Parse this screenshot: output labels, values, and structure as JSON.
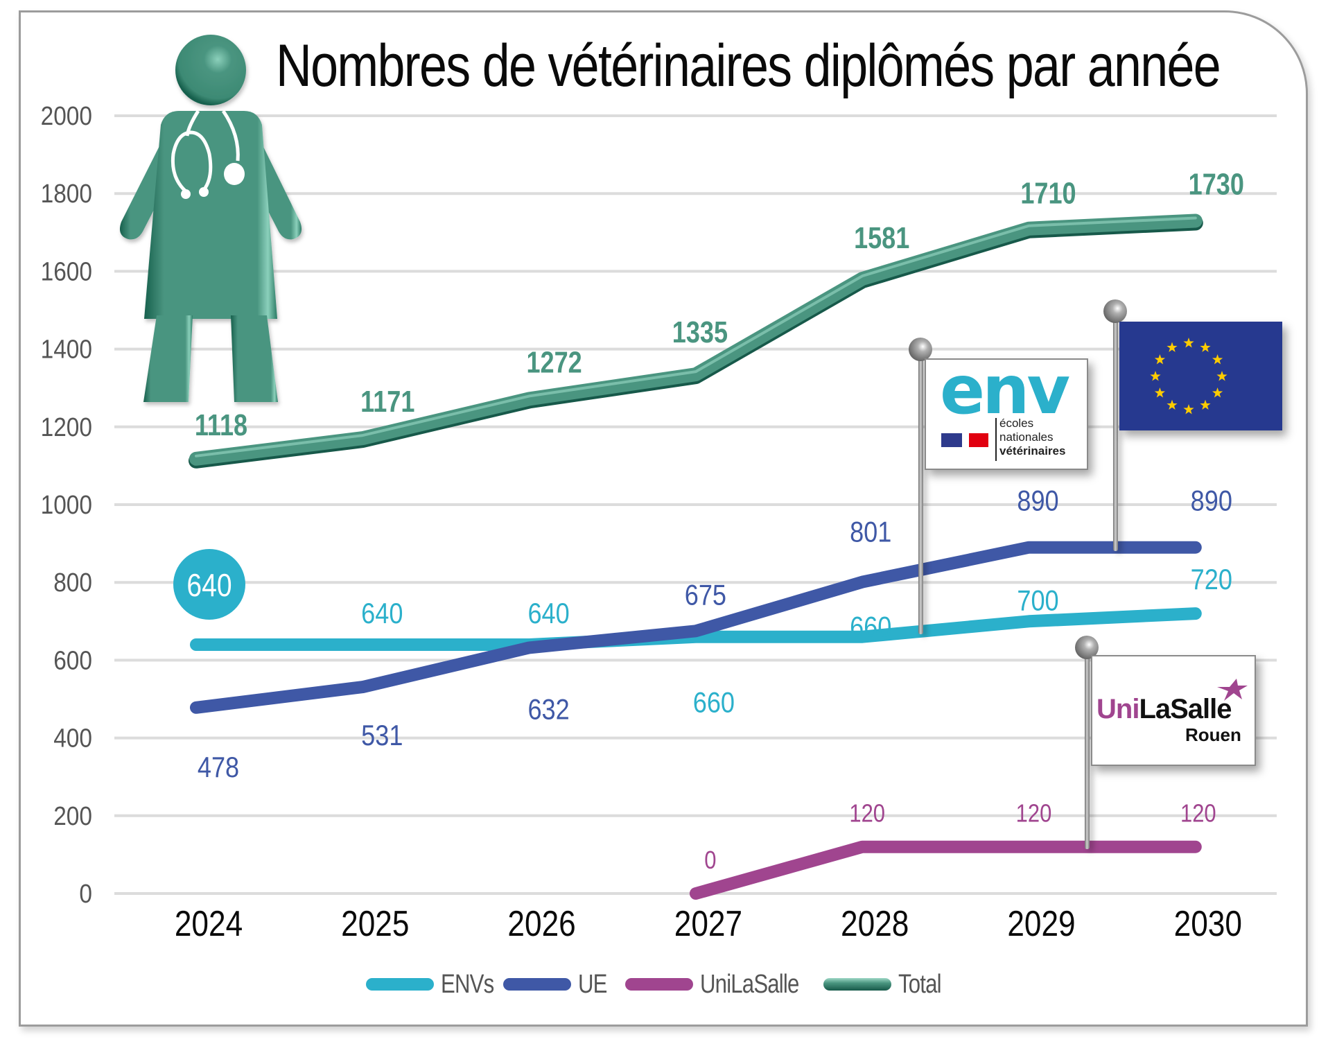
{
  "title": "Nombres de vétérinaires diplômés par année",
  "icons": {
    "person": "veterinarian-woman-with-stethoscope-icon",
    "pin": "map-pin-ball-icon"
  },
  "flags": {
    "env": {
      "logo_text": "env",
      "line1": "écoles",
      "line2": "nationales",
      "line3": "vétérinaires",
      "series": "ENVs"
    },
    "eu": {
      "name": "european-union-flag",
      "series": "UE"
    },
    "unilasalle": {
      "part1": "Uni",
      "part2": "LaSalle",
      "city": "Rouen",
      "series": "UniLaSalle"
    }
  },
  "colors": {
    "envs": "#2bb0cb",
    "ue": "#3f58a6",
    "unilasalle": "#a0458f",
    "total": "#4a9580",
    "total_dark": "#1f6a56",
    "grid": "#dcdcdc",
    "axis_text": "#555555",
    "eu_blue": "#26398f",
    "eu_star": "#ffcc00"
  },
  "chart_data": {
    "type": "line",
    "title": "Nombres de vétérinaires diplômés par année",
    "xlabel": "",
    "ylabel": "",
    "categories": [
      "2024",
      "2025",
      "2026",
      "2027",
      "2028",
      "2029",
      "2030"
    ],
    "ylim": [
      0,
      2000
    ],
    "yticks": [
      0,
      200,
      400,
      600,
      800,
      1000,
      1200,
      1400,
      1600,
      1800,
      2000
    ],
    "grid": true,
    "legend_position": "bottom",
    "series": [
      {
        "key": "envs",
        "name": "ENVs",
        "values": [
          640,
          640,
          640,
          660,
          660,
          700,
          720
        ]
      },
      {
        "key": "ue",
        "name": "UE",
        "values": [
          478,
          531,
          632,
          675,
          801,
          890,
          890
        ]
      },
      {
        "key": "unilasalle",
        "name": "UniLaSalle",
        "values": [
          null,
          null,
          null,
          0,
          120,
          120,
          120
        ]
      },
      {
        "key": "total",
        "name": "Total",
        "values": [
          1118,
          1171,
          1272,
          1335,
          1581,
          1710,
          1730
        ]
      }
    ],
    "highlighted_label": {
      "series": "envs",
      "category": "2024",
      "value": 640
    }
  },
  "legend": [
    {
      "key": "envs",
      "label": "ENVs"
    },
    {
      "key": "ue",
      "label": "UE"
    },
    {
      "key": "unilasalle",
      "label": "UniLaSalle"
    },
    {
      "key": "total",
      "label": "Total"
    }
  ]
}
